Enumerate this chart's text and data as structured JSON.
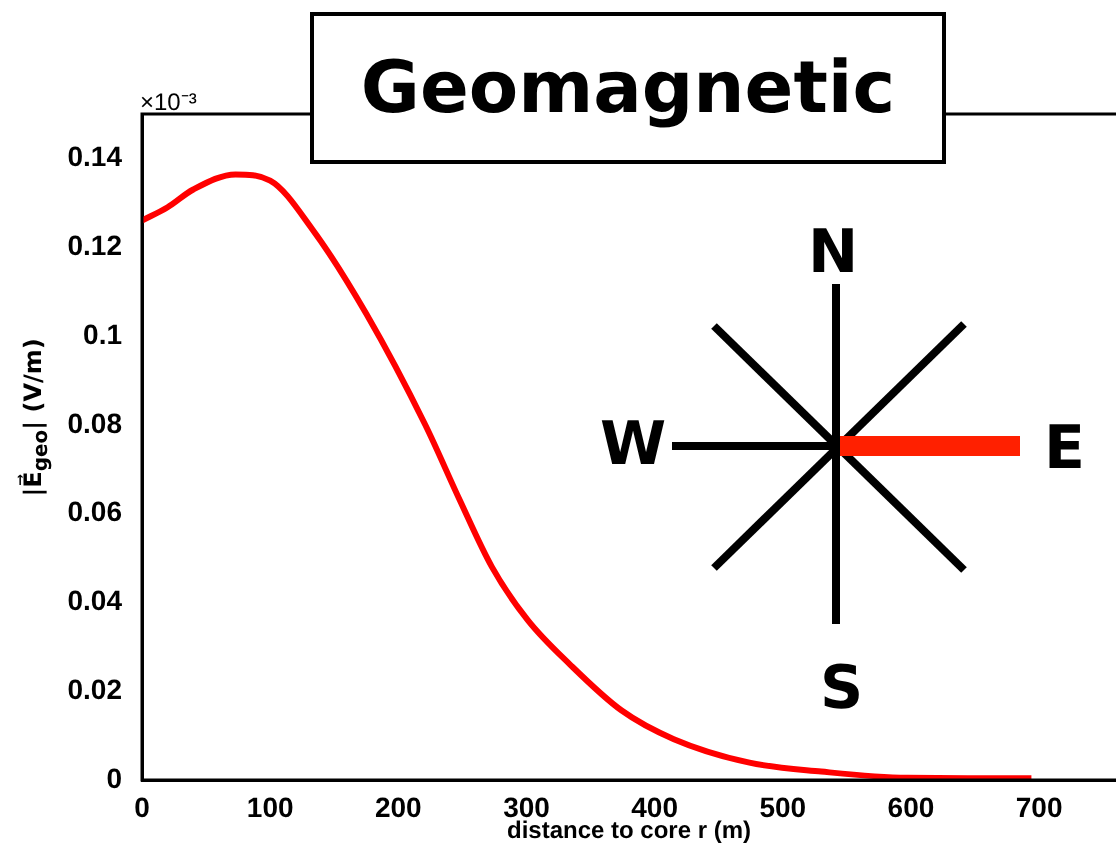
{
  "chart_data": {
    "type": "line",
    "title": "Geomagnetic",
    "xlabel": "distance to core r (m)",
    "ylabel": "|E⃗$_{geo}$| (V/m)",
    "annotations": [
      "×10⁻³",
      "N",
      "W",
      "E",
      "S"
    ],
    "x": [
      0,
      20,
      40,
      73,
      100,
      133,
      175,
      221,
      248,
      273,
      301,
      334,
      374,
      415,
      474,
      530,
      597,
      694
    ],
    "series": [
      {
        "color": "#ff0000",
        "values": [
          0.126,
          0.129,
          0.133,
          0.1364,
          0.135,
          0.124,
          0.105,
          0.08,
          0.063,
          0.048,
          0.036,
          0.026,
          0.0157,
          0.0092,
          0.0039,
          0.0019,
          0.0005,
          0.0004
        ]
      }
    ],
    "xlim": [
      0,
      760
    ],
    "xticks": [
      0,
      100,
      200,
      300,
      400,
      500,
      600,
      700
    ],
    "ylim": [
      0,
      0.15
    ],
    "yticks": [
      0,
      0.02,
      0.04,
      0.06,
      0.08,
      0.1,
      0.12,
      0.14
    ],
    "grid": false,
    "legend": false,
    "marker": "none",
    "line_style": "solid"
  }
}
